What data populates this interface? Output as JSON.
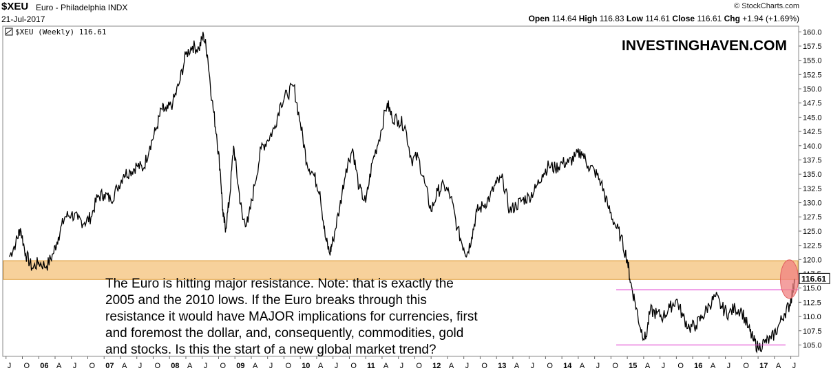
{
  "header": {
    "symbol": "$XEU",
    "name": "Euro - Philadelphia INDX",
    "date": "21-Jul-2017",
    "credit": "© StockCharts.com",
    "ohlc": {
      "open_label": "Open",
      "open": "114.64",
      "high_label": "High",
      "high": "116.83",
      "low_label": "Low",
      "low": "114.61",
      "close_label": "Close",
      "close": "116.61",
      "chg_label": "Chg",
      "chg": "+1.94 (+1.69%)"
    }
  },
  "chart_data": {
    "type": "line",
    "title": "$XEU (Weekly) 116.61",
    "watermark": "INVESTINGHAVEN.COM",
    "ylim": [
      103,
      161
    ],
    "y_ticks": [
      "160.0",
      "157.5",
      "155.0",
      "152.5",
      "150.0",
      "147.5",
      "145.0",
      "142.5",
      "140.0",
      "137.5",
      "135.0",
      "132.5",
      "130.0",
      "127.5",
      "125.0",
      "122.5",
      "120.0",
      "117.5",
      "115.0",
      "112.5",
      "110.0",
      "107.5",
      "105.0"
    ],
    "x_ticks": [
      "J",
      "O",
      "06",
      "A",
      "J",
      "O",
      "07",
      "A",
      "J",
      "O",
      "08",
      "A",
      "J",
      "O",
      "09",
      "A",
      "J",
      "O",
      "10",
      "A",
      "J",
      "O",
      "11",
      "A",
      "J",
      "O",
      "12",
      "A",
      "J",
      "O",
      "13",
      "A",
      "J",
      "O",
      "14",
      "A",
      "J",
      "O",
      "15",
      "A",
      "J",
      "O",
      "16",
      "A",
      "J",
      "O",
      "17",
      "A",
      "J"
    ],
    "x_range": [
      "2005-07",
      "2017-07"
    ],
    "last_value": "116.61",
    "series": [
      {
        "values": [
          [
            2005.55,
            120.5
          ],
          [
            2005.65,
            123
          ],
          [
            2005.72,
            125.5
          ],
          [
            2005.8,
            121
          ],
          [
            2005.9,
            118.5
          ],
          [
            2006.0,
            119.5
          ],
          [
            2006.12,
            118.8
          ],
          [
            2006.22,
            121
          ],
          [
            2006.3,
            124
          ],
          [
            2006.4,
            127.5
          ],
          [
            2006.5,
            128
          ],
          [
            2006.6,
            127
          ],
          [
            2006.7,
            126.5
          ],
          [
            2006.8,
            127.5
          ],
          [
            2006.9,
            131
          ],
          [
            2007.0,
            131.5
          ],
          [
            2007.1,
            130.5
          ],
          [
            2007.2,
            132.5
          ],
          [
            2007.3,
            135
          ],
          [
            2007.4,
            135.5
          ],
          [
            2007.5,
            136.5
          ],
          [
            2007.6,
            136
          ],
          [
            2007.7,
            140
          ],
          [
            2007.8,
            143
          ],
          [
            2007.88,
            146.5
          ],
          [
            2007.95,
            146
          ],
          [
            2008.05,
            147.5
          ],
          [
            2008.15,
            151
          ],
          [
            2008.25,
            156
          ],
          [
            2008.35,
            157.5
          ],
          [
            2008.45,
            157
          ],
          [
            2008.52,
            159.5
          ],
          [
            2008.58,
            156
          ],
          [
            2008.65,
            148
          ],
          [
            2008.72,
            142
          ],
          [
            2008.78,
            135
          ],
          [
            2008.82,
            127.5
          ],
          [
            2008.86,
            125.5
          ],
          [
            2008.92,
            131
          ],
          [
            2008.98,
            140
          ],
          [
            2009.05,
            133
          ],
          [
            2009.12,
            127
          ],
          [
            2009.2,
            126.5
          ],
          [
            2009.3,
            133
          ],
          [
            2009.4,
            139.5
          ],
          [
            2009.5,
            141
          ],
          [
            2009.6,
            143
          ],
          [
            2009.7,
            147.5
          ],
          [
            2009.8,
            149
          ],
          [
            2009.9,
            150.5
          ],
          [
            2010.0,
            144
          ],
          [
            2010.1,
            137
          ],
          [
            2010.2,
            135
          ],
          [
            2010.3,
            132
          ],
          [
            2010.38,
            124
          ],
          [
            2010.45,
            121
          ],
          [
            2010.5,
            123.5
          ],
          [
            2010.6,
            129
          ],
          [
            2010.7,
            136
          ],
          [
            2010.8,
            139.5
          ],
          [
            2010.9,
            132.5
          ],
          [
            2011.0,
            130
          ],
          [
            2011.1,
            137
          ],
          [
            2011.2,
            141
          ],
          [
            2011.33,
            147.5
          ],
          [
            2011.4,
            145
          ],
          [
            2011.5,
            144.5
          ],
          [
            2011.6,
            143.5
          ],
          [
            2011.7,
            137.5
          ],
          [
            2011.8,
            138
          ],
          [
            2011.9,
            133.5
          ],
          [
            2012.0,
            128.5
          ],
          [
            2012.1,
            132
          ],
          [
            2012.2,
            133
          ],
          [
            2012.3,
            131
          ],
          [
            2012.4,
            125.5
          ],
          [
            2012.5,
            122
          ],
          [
            2012.55,
            121
          ],
          [
            2012.62,
            124
          ],
          [
            2012.7,
            128.5
          ],
          [
            2012.8,
            129.5
          ],
          [
            2012.9,
            131
          ],
          [
            2013.0,
            133.5
          ],
          [
            2013.1,
            134
          ],
          [
            2013.2,
            128.5
          ],
          [
            2013.3,
            129.5
          ],
          [
            2013.4,
            130.5
          ],
          [
            2013.5,
            131
          ],
          [
            2013.6,
            132.5
          ],
          [
            2013.7,
            135
          ],
          [
            2013.8,
            136.5
          ],
          [
            2013.9,
            136
          ],
          [
            2014.0,
            137
          ],
          [
            2014.1,
            137
          ],
          [
            2014.2,
            138
          ],
          [
            2014.3,
            139
          ],
          [
            2014.4,
            136.5
          ],
          [
            2014.5,
            135.5
          ],
          [
            2014.6,
            133.5
          ],
          [
            2014.7,
            129.5
          ],
          [
            2014.8,
            126.5
          ],
          [
            2014.9,
            124
          ],
          [
            2015.0,
            120
          ],
          [
            2015.05,
            116
          ],
          [
            2015.12,
            112.5
          ],
          [
            2015.2,
            108
          ],
          [
            2015.28,
            106
          ],
          [
            2015.35,
            111
          ],
          [
            2015.45,
            110.5
          ],
          [
            2015.55,
            110
          ],
          [
            2015.65,
            111.5
          ],
          [
            2015.75,
            113
          ],
          [
            2015.85,
            110
          ],
          [
            2015.95,
            108
          ],
          [
            2016.05,
            108.5
          ],
          [
            2016.15,
            110
          ],
          [
            2016.25,
            112
          ],
          [
            2016.35,
            113.5
          ],
          [
            2016.45,
            111.5
          ],
          [
            2016.55,
            110.5
          ],
          [
            2016.65,
            111.5
          ],
          [
            2016.75,
            111
          ],
          [
            2016.85,
            108
          ],
          [
            2016.92,
            106
          ],
          [
            2017.0,
            104.5
          ],
          [
            2017.1,
            105.5
          ],
          [
            2017.2,
            106
          ],
          [
            2017.3,
            108
          ],
          [
            2017.4,
            110.5
          ],
          [
            2017.48,
            112
          ],
          [
            2017.53,
            114.5
          ],
          [
            2017.56,
            116.61
          ]
        ]
      }
    ],
    "annotations": {
      "text_lines": [
        "The Euro is hitting major resistance. Note: that is exactly the",
        "2005 and the 2010 lows. If the Euro breaks through this",
        "resistance it would have MAJOR implications for currencies, first",
        "and foremost the dollar, and, consequently, commodities, gold",
        "and stocks. Is this the start of a new global market trend?"
      ],
      "resistance_zone": [
        116.5,
        119.8
      ],
      "upper_channel": 114.7,
      "lower_channel": 105.0,
      "channel_start": 2015.02,
      "channel_end": 2017.6,
      "highlight_center": [
        2017.52,
        116.8
      ],
      "zone_color": "#f6c98a",
      "zone_border": "#e0a040",
      "channel_color": "#e040d0",
      "highlight_color": "#f08080",
      "line_color": "#000000"
    }
  }
}
